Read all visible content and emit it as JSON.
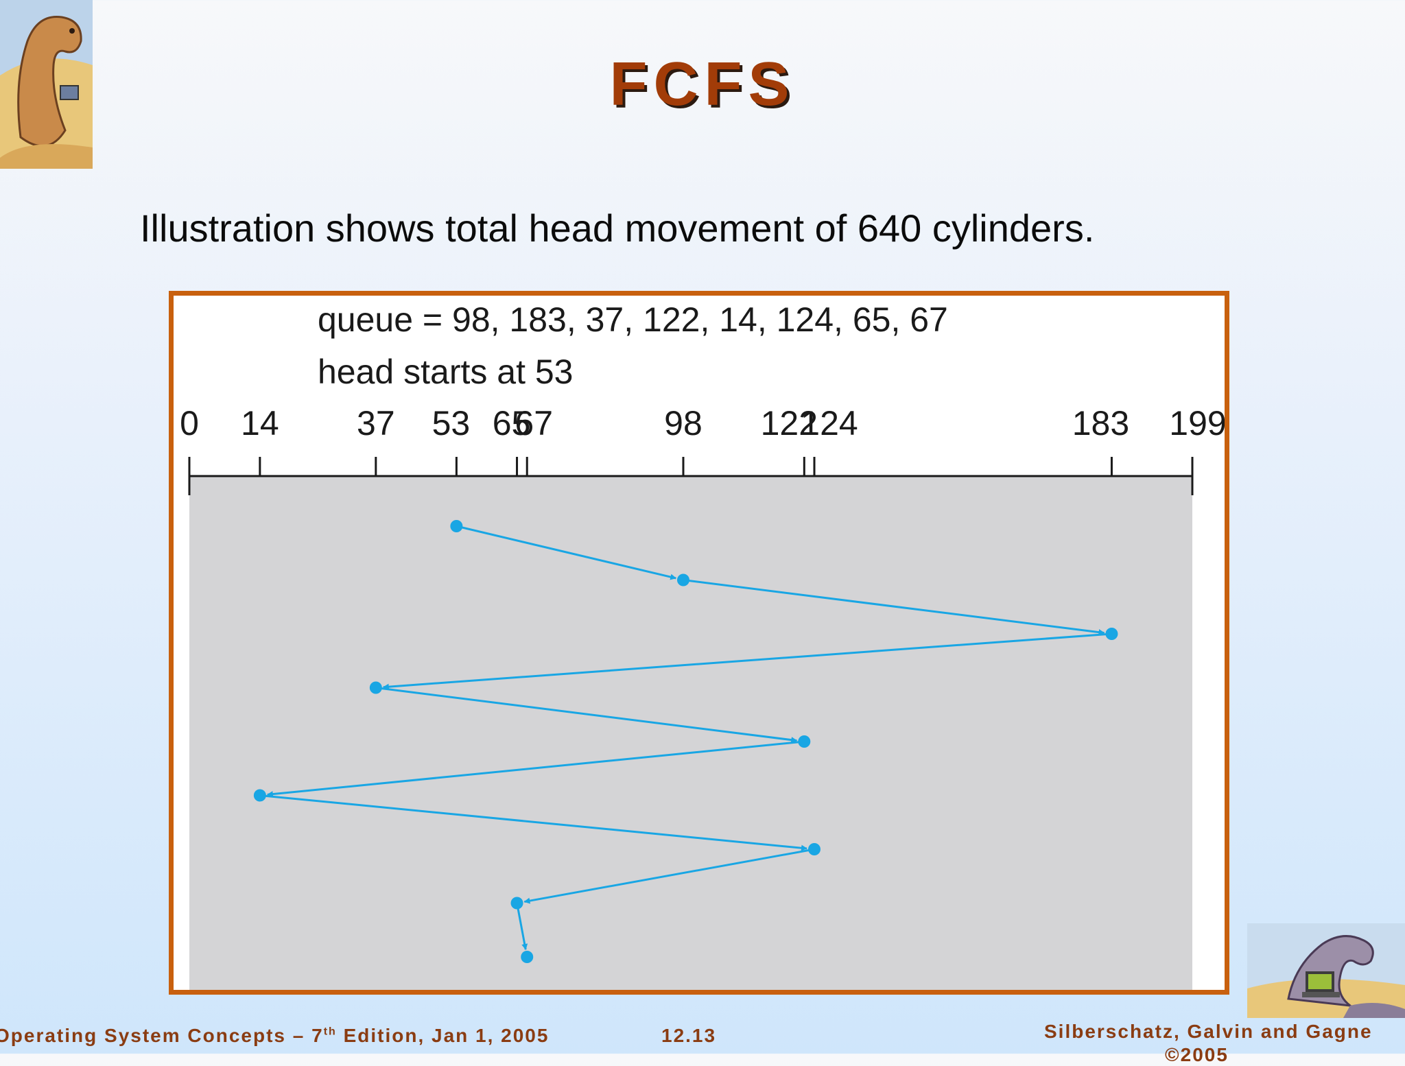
{
  "slide": {
    "title": "FCFS",
    "bullet": "Illustration shows total head movement of 640 cylinders."
  },
  "figure": {
    "queue_label": "queue = 98, 183, 37, 122, 14, 124, 65, 67",
    "head_label": "head starts at 53",
    "axis_ticks": [
      0,
      14,
      37,
      53,
      65,
      67,
      98,
      122,
      124,
      183,
      199
    ],
    "axis_range": [
      0,
      199
    ],
    "head_start": 53,
    "path": [
      53,
      98,
      183,
      37,
      122,
      14,
      124,
      65,
      67
    ],
    "colors": {
      "path": "#19a6e4",
      "plot_bg": "#d4d4d6",
      "border": "#c8600e"
    }
  },
  "footer": {
    "left_prefix": "Operating System Concepts – 7",
    "left_sup": "th",
    "left_suffix": " Edition, Jan 1, 2005",
    "center": "12.13",
    "right_line1": "Silberschatz, Galvin and Gagne",
    "right_line2": "©2005"
  },
  "icons": [
    "dinosaur-logo-icon",
    "dinosaur-laptop-icon"
  ]
}
